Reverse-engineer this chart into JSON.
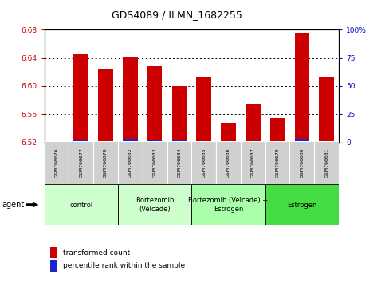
{
  "title": "GDS4089 / ILMN_1682255",
  "samples": [
    "GSM766676",
    "GSM766677",
    "GSM766678",
    "GSM766682",
    "GSM766683",
    "GSM766684",
    "GSM766685",
    "GSM766686",
    "GSM766687",
    "GSM766679",
    "GSM766680",
    "GSM766681"
  ],
  "transformed_counts": [
    6.521,
    6.645,
    6.625,
    6.641,
    6.628,
    6.6,
    6.612,
    6.547,
    6.575,
    6.555,
    6.675,
    6.612
  ],
  "percentile_ranks": [
    1,
    4,
    3,
    5,
    4,
    4,
    3,
    2,
    2,
    1,
    5,
    2
  ],
  "y_min": 6.52,
  "y_max": 6.68,
  "y_ticks": [
    6.52,
    6.56,
    6.6,
    6.64,
    6.68
  ],
  "right_y_ticks": [
    0,
    25,
    50,
    75,
    100
  ],
  "right_y_labels": [
    "0",
    "25",
    "50",
    "75",
    "100%"
  ],
  "bar_color_red": "#cc0000",
  "bar_color_blue": "#2222cc",
  "group_spans": [
    {
      "start": 0,
      "end": 2,
      "label": "control",
      "color": "#ccffcc"
    },
    {
      "start": 3,
      "end": 5,
      "label": "Bortezomib\n(Velcade)",
      "color": "#ccffcc"
    },
    {
      "start": 6,
      "end": 8,
      "label": "Bortezomib (Velcade) +\nEstrogen",
      "color": "#aaffaa"
    },
    {
      "start": 9,
      "end": 11,
      "label": "Estrogen",
      "color": "#44dd44"
    }
  ],
  "agent_label": "agent",
  "legend_red_label": "transformed count",
  "legend_blue_label": "percentile rank within the sample",
  "left_axis_color": "#cc0000",
  "right_axis_color": "#0000cc",
  "sample_box_color": "#d0d0d0",
  "title_fontsize": 9,
  "tick_fontsize": 6.5,
  "sample_fontsize": 4.5,
  "group_fontsize": 6,
  "legend_fontsize": 6.5,
  "agent_fontsize": 7
}
